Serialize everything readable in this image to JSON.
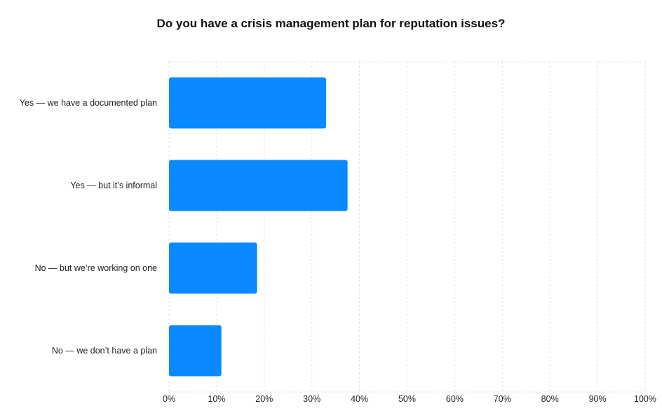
{
  "chart_data": {
    "type": "bar",
    "orientation": "horizontal",
    "title": "Do you have a crisis management plan for reputation issues?",
    "categories": [
      "Yes — we have a documented plan",
      "Yes — but it’s informal",
      "No — but we’re working on one",
      "No — we don’t have a plan"
    ],
    "values": [
      33,
      37.5,
      18.5,
      11
    ],
    "xlabel": "",
    "ylabel": "",
    "xlim": [
      0,
      100
    ],
    "ticks": [
      "0%",
      "10%",
      "20%",
      "30%",
      "40%",
      "50%",
      "60%",
      "70%",
      "80%",
      "90%",
      "100%"
    ],
    "tick_values": [
      0,
      10,
      20,
      30,
      40,
      50,
      60,
      70,
      80,
      90,
      100
    ],
    "grid": true,
    "bar_color": "#0a8afe",
    "grid_color": "#e2e2e2"
  }
}
